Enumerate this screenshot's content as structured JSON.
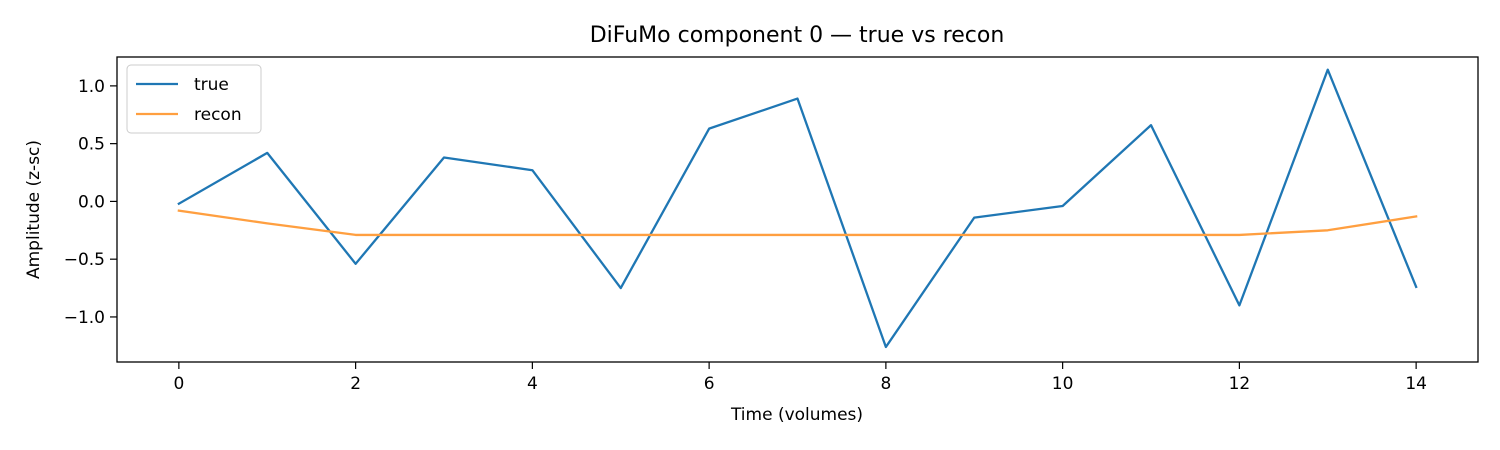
{
  "chart_data": {
    "type": "line",
    "title": "DiFuMo component 0 — true vs recon",
    "xlabel": "Time (volumes)",
    "ylabel": "Amplitude (z-sc)",
    "x": [
      0,
      1,
      2,
      3,
      4,
      5,
      6,
      7,
      8,
      9,
      10,
      11,
      12,
      13,
      14
    ],
    "xlim": [
      -0.7,
      14.7
    ],
    "ylim": [
      -1.39,
      1.25
    ],
    "xticks": [
      0,
      2,
      4,
      6,
      8,
      10,
      12,
      14
    ],
    "xtick_labels": [
      "0",
      "2",
      "4",
      "6",
      "8",
      "10",
      "12",
      "14"
    ],
    "yticks": [
      1.0,
      0.5,
      0.0,
      -0.5,
      -1.0
    ],
    "ytick_labels": [
      "1.0",
      "0.5",
      "0.0",
      "−0.5",
      "−1.0"
    ],
    "grid": false,
    "legend_position": "upper-left",
    "series": [
      {
        "name": "true",
        "color": "#1f77b4",
        "values": [
          -0.02,
          0.42,
          -0.54,
          0.38,
          0.27,
          -0.75,
          0.63,
          0.89,
          -1.26,
          -0.14,
          -0.04,
          0.66,
          -0.9,
          1.14,
          -0.74
        ]
      },
      {
        "name": "recon",
        "color": "#ff9f40",
        "values": [
          -0.08,
          -0.19,
          -0.29,
          -0.29,
          -0.29,
          -0.29,
          -0.29,
          -0.29,
          -0.29,
          -0.29,
          -0.29,
          -0.29,
          -0.29,
          -0.25,
          -0.13
        ]
      }
    ]
  }
}
